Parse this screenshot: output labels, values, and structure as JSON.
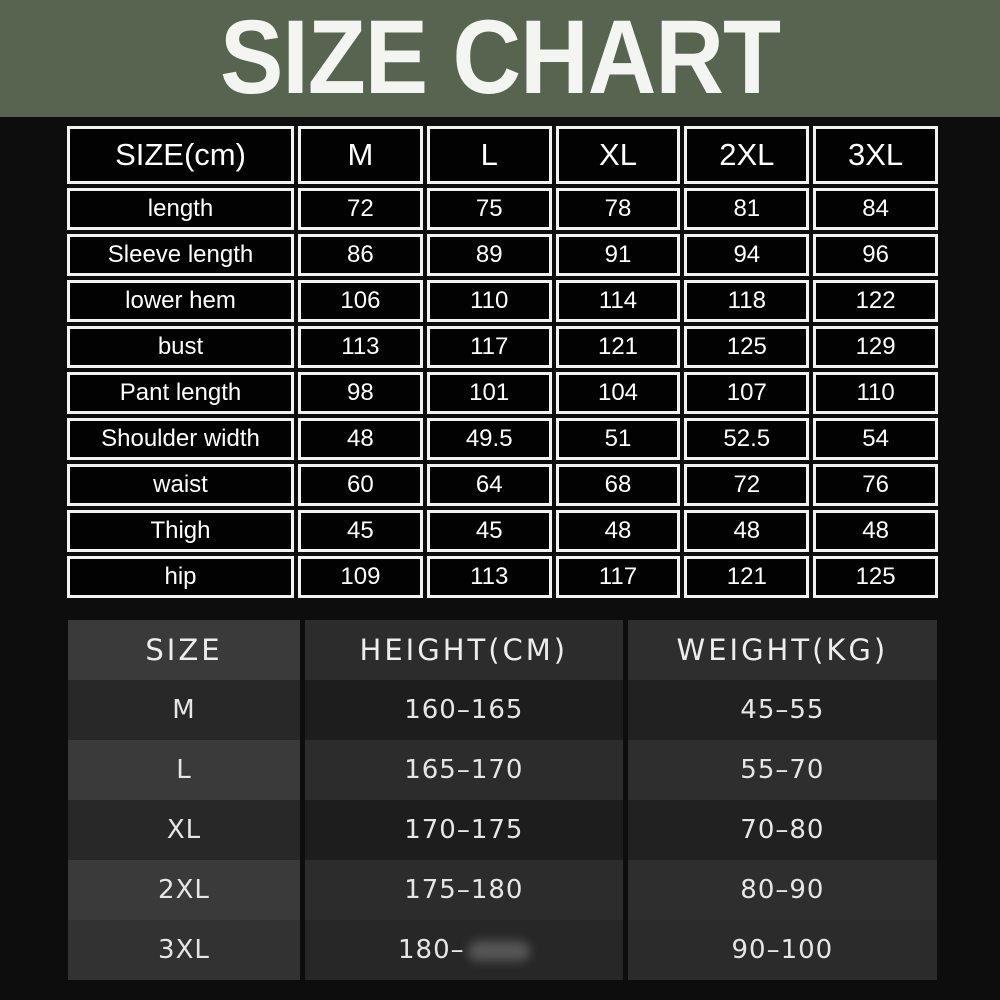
{
  "banner": {
    "title": "SIZE CHART",
    "bg_color": "#566450",
    "text_color": "#f3f5f1"
  },
  "size_table": {
    "header": [
      "SIZE(cm)",
      "M",
      "L",
      "XL",
      "2XL",
      "3XL"
    ],
    "rows": [
      {
        "label": "length",
        "values": [
          "72",
          "75",
          "78",
          "81",
          "84"
        ]
      },
      {
        "label": "Sleeve length",
        "values": [
          "86",
          "89",
          "91",
          "94",
          "96"
        ]
      },
      {
        "label": "lower hem",
        "values": [
          "106",
          "110",
          "114",
          "118",
          "122"
        ]
      },
      {
        "label": "bust",
        "values": [
          "113",
          "117",
          "121",
          "125",
          "129"
        ]
      },
      {
        "label": "Pant length",
        "values": [
          "98",
          "101",
          "104",
          "107",
          "110"
        ]
      },
      {
        "label": "Shoulder width",
        "values": [
          "48",
          "49.5",
          "51",
          "52.5",
          "54"
        ]
      },
      {
        "label": "waist",
        "values": [
          "60",
          "64",
          "68",
          "72",
          "76"
        ]
      },
      {
        "label": "Thigh",
        "values": [
          "45",
          "45",
          "48",
          "48",
          "48"
        ]
      },
      {
        "label": "hip",
        "values": [
          "109",
          "113",
          "117",
          "121",
          "125"
        ]
      }
    ]
  },
  "fit_table": {
    "header": [
      "SIZE",
      "HEIGHT(CM)",
      "WEIGHT(KG)"
    ],
    "rows": [
      {
        "size": "M",
        "height": "160–165",
        "weight": "45–55",
        "height_smudged": false
      },
      {
        "size": "L",
        "height": "165–170",
        "weight": "55–70",
        "height_smudged": false
      },
      {
        "size": "XL",
        "height": "170–175",
        "weight": "70–80",
        "height_smudged": false
      },
      {
        "size": "2XL",
        "height": "175–180",
        "weight": "80–90",
        "height_smudged": false
      },
      {
        "size": "3XL",
        "height": "180–",
        "weight": "90–100",
        "height_smudged": true
      }
    ]
  },
  "colors": {
    "page_bg": "#0d0d0d",
    "grid_border": "#f2f2f2",
    "grid_cell_bg": "#020202",
    "fit_light_row": "#3a3a3a",
    "fit_dark_row": "#1d1d1d"
  }
}
